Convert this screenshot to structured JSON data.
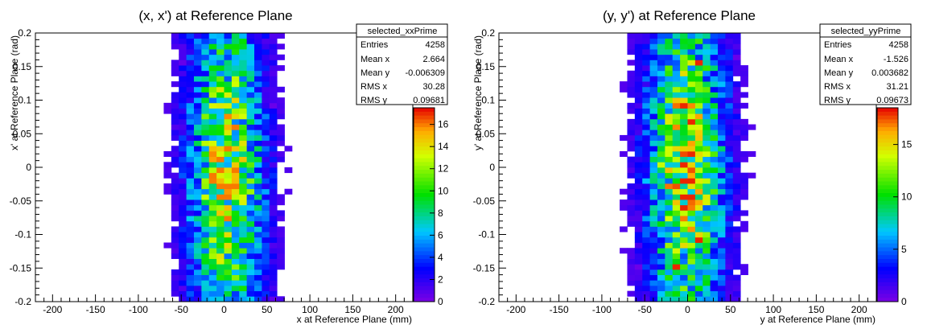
{
  "chart_data": [
    {
      "type": "heatmap",
      "title": "(x, x') at Reference Plane",
      "xlabel": "x at Reference Plane (mm)",
      "ylabel": "x' at Reference Plane (rad)",
      "xlim": [
        -220,
        220
      ],
      "ylim": [
        -0.2,
        0.2
      ],
      "x_ticks": [
        "-200",
        "-150",
        "-100",
        "-50",
        "0",
        "50",
        "100",
        "150",
        "200"
      ],
      "y_ticks": [
        "-0.2",
        "-0.15",
        "-0.1",
        "-0.05",
        "0",
        "0.05",
        "0.1",
        "0.15",
        "0.2"
      ],
      "z_ticks": [
        "0",
        "2",
        "4",
        "6",
        "8",
        "10",
        "12",
        "14",
        "16"
      ],
      "zlim": [
        0,
        17.5
      ],
      "stats": {
        "name": "selected_xxPrime",
        "rows": [
          {
            "label": "Entries",
            "value": "4258"
          },
          {
            "label": "Mean x",
            "value": "2.664"
          },
          {
            "label": "Mean y",
            "value": "-0.006309"
          },
          {
            "label": "RMS x",
            "value": "30.28"
          },
          {
            "label": "RMS y",
            "value": "0.09681"
          }
        ]
      },
      "distribution": {
        "x_mean": 2.664,
        "x_rms": 30.28,
        "x_extent": 120,
        "y_mean": -0.006309,
        "y_rms": 0.09681,
        "peak": 16
      },
      "bin_width": [
        8.8,
        0.008
      ],
      "grid": false,
      "legend": "top-right"
    },
    {
      "type": "heatmap",
      "title": "(y, y') at Reference Plane",
      "xlabel": "y at Reference Plane (mm)",
      "ylabel": "y' at Reference Plane (rad)",
      "xlim": [
        -220,
        220
      ],
      "ylim": [
        -0.2,
        0.2
      ],
      "x_ticks": [
        "-200",
        "-150",
        "-100",
        "-50",
        "0",
        "50",
        "100",
        "150",
        "200"
      ],
      "y_ticks": [
        "-0.2",
        "-0.15",
        "-0.1",
        "-0.05",
        "0",
        "0.05",
        "0.1",
        "0.15",
        "0.2"
      ],
      "z_ticks": [
        "0",
        "5",
        "10",
        "15"
      ],
      "zlim": [
        0,
        18.5
      ],
      "stats": {
        "name": "selected_yyPrime",
        "rows": [
          {
            "label": "Entries",
            "value": "4258"
          },
          {
            "label": "Mean x",
            "value": "-1.526"
          },
          {
            "label": "Mean y",
            "value": "0.003682"
          },
          {
            "label": "RMS x",
            "value": "31.21"
          },
          {
            "label": "RMS y",
            "value": "0.09673"
          }
        ]
      },
      "distribution": {
        "x_mean": -1.526,
        "x_rms": 31.21,
        "x_extent": 120,
        "y_mean": 0.003682,
        "y_rms": 0.09673,
        "peak": 18
      },
      "bin_width": [
        8.8,
        0.008
      ],
      "grid": false,
      "legend": "top-right"
    }
  ]
}
